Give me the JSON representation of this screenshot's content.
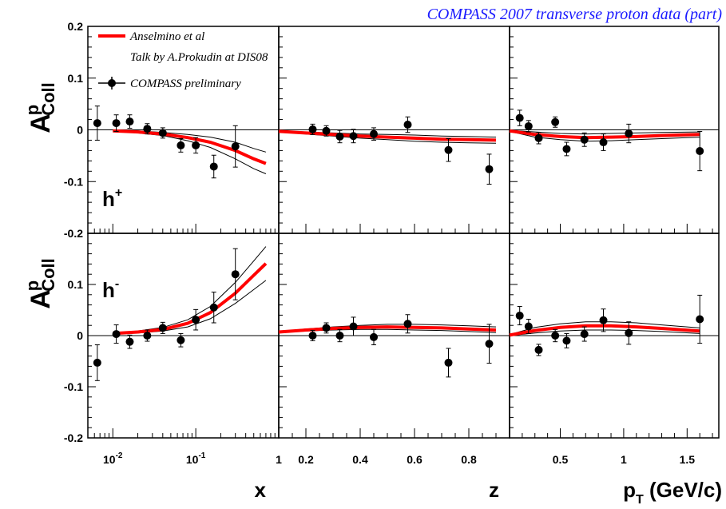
{
  "chart_data": {
    "type": "scatter",
    "title": "COMPASS 2007 transverse proton data  (part)",
    "ylabel": "A",
    "ylabel_sup": "p",
    "ylabel_sub": "Coll",
    "ylim": [
      -0.2,
      0.2
    ],
    "ytick_labels": [
      "0.2",
      "0.1",
      "0",
      "-0.1",
      "-0.2"
    ],
    "yticks": [
      0.2,
      0.1,
      0,
      -0.1,
      -0.2
    ],
    "legend": {
      "placement": "top-left",
      "curve": "Anselmino et al",
      "curve_note": "Talk by A.Prokudin at DIS08",
      "points": "COMPASS preliminary"
    },
    "colors": {
      "curve": "#ff0000",
      "points": "#000000",
      "band": "#000000",
      "title": "#1a1aff"
    },
    "rows": [
      {
        "label": "h",
        "sup": "+"
      },
      {
        "label": "h",
        "sup": "-"
      }
    ],
    "columns": [
      {
        "xlabel": "x",
        "scale": "log",
        "xlim": [
          0.005,
          1.0
        ],
        "xtick_labels": [
          {
            "value": 0.01,
            "base": "10",
            "exp": "-2"
          },
          {
            "value": 0.1,
            "base": "10",
            "exp": "-1"
          },
          {
            "value": 1,
            "base": "1",
            "exp": ""
          }
        ],
        "panels": [
          {
            "points": [
              {
                "x": 0.0065,
                "y": 0.013,
                "err": 0.033
              },
              {
                "x": 0.011,
                "y": 0.013,
                "err": 0.016
              },
              {
                "x": 0.016,
                "y": 0.016,
                "err": 0.013
              },
              {
                "x": 0.026,
                "y": 0.002,
                "err": 0.01
              },
              {
                "x": 0.04,
                "y": -0.006,
                "err": 0.01
              },
              {
                "x": 0.066,
                "y": -0.03,
                "err": 0.013
              },
              {
                "x": 0.1,
                "y": -0.03,
                "err": 0.015
              },
              {
                "x": 0.165,
                "y": -0.071,
                "err": 0.022
              },
              {
                "x": 0.3,
                "y": -0.032,
                "err": 0.04
              }
            ],
            "curve": [
              {
                "x": 0.01,
                "y": -0.002,
                "lo": -0.003,
                "hi": -0.001
              },
              {
                "x": 0.02,
                "y": -0.004,
                "lo": -0.006,
                "hi": -0.002
              },
              {
                "x": 0.04,
                "y": -0.008,
                "lo": -0.011,
                "hi": -0.005
              },
              {
                "x": 0.08,
                "y": -0.015,
                "lo": -0.021,
                "hi": -0.009
              },
              {
                "x": 0.15,
                "y": -0.024,
                "lo": -0.034,
                "hi": -0.014
              },
              {
                "x": 0.3,
                "y": -0.04,
                "lo": -0.056,
                "hi": -0.024
              },
              {
                "x": 0.5,
                "y": -0.056,
                "lo": -0.075,
                "hi": -0.036
              },
              {
                "x": 0.7,
                "y": -0.065,
                "lo": -0.085,
                "hi": -0.043
              }
            ]
          },
          {
            "points": [
              {
                "x": 0.0065,
                "y": -0.053,
                "err": 0.035
              },
              {
                "x": 0.011,
                "y": 0.003,
                "err": 0.018
              },
              {
                "x": 0.016,
                "y": -0.012,
                "err": 0.013
              },
              {
                "x": 0.026,
                "y": 0.0,
                "err": 0.011
              },
              {
                "x": 0.04,
                "y": 0.015,
                "err": 0.011
              },
              {
                "x": 0.066,
                "y": -0.009,
                "err": 0.013
              },
              {
                "x": 0.1,
                "y": 0.031,
                "err": 0.02
              },
              {
                "x": 0.165,
                "y": 0.055,
                "err": 0.03
              },
              {
                "x": 0.3,
                "y": 0.12,
                "err": 0.05
              }
            ],
            "curve": [
              {
                "x": 0.01,
                "y": 0.004,
                "lo": 0.003,
                "hi": 0.005
              },
              {
                "x": 0.02,
                "y": 0.007,
                "lo": 0.005,
                "hi": 0.009
              },
              {
                "x": 0.04,
                "y": 0.012,
                "lo": 0.009,
                "hi": 0.016
              },
              {
                "x": 0.08,
                "y": 0.024,
                "lo": 0.017,
                "hi": 0.031
              },
              {
                "x": 0.15,
                "y": 0.045,
                "lo": 0.033,
                "hi": 0.057
              },
              {
                "x": 0.3,
                "y": 0.083,
                "lo": 0.063,
                "hi": 0.104
              },
              {
                "x": 0.5,
                "y": 0.118,
                "lo": 0.09,
                "hi": 0.146
              },
              {
                "x": 0.7,
                "y": 0.141,
                "lo": 0.108,
                "hi": 0.174
              }
            ]
          }
        ]
      },
      {
        "xlabel": "z",
        "scale": "linear",
        "xlim": [
          0.1,
          0.95
        ],
        "xtick_labels": [
          {
            "value": 0.2,
            "base": "0.2",
            "exp": ""
          },
          {
            "value": 0.4,
            "base": "0.4",
            "exp": ""
          },
          {
            "value": 0.6,
            "base": "0.6",
            "exp": ""
          },
          {
            "value": 0.8,
            "base": "0.8",
            "exp": ""
          }
        ],
        "panels": [
          {
            "points": [
              {
                "x": 0.225,
                "y": 0.001,
                "err": 0.01
              },
              {
                "x": 0.275,
                "y": -0.002,
                "err": 0.01
              },
              {
                "x": 0.325,
                "y": -0.013,
                "err": 0.012
              },
              {
                "x": 0.375,
                "y": -0.012,
                "err": 0.013
              },
              {
                "x": 0.45,
                "y": -0.008,
                "err": 0.012
              },
              {
                "x": 0.575,
                "y": 0.01,
                "err": 0.015
              },
              {
                "x": 0.725,
                "y": -0.039,
                "err": 0.022
              },
              {
                "x": 0.875,
                "y": -0.076,
                "err": 0.029
              }
            ],
            "curve": [
              {
                "x": 0.1,
                "y": -0.003,
                "lo": -0.004,
                "hi": -0.002
              },
              {
                "x": 0.2,
                "y": -0.006,
                "lo": -0.008,
                "hi": -0.004
              },
              {
                "x": 0.3,
                "y": -0.009,
                "lo": -0.012,
                "hi": -0.006
              },
              {
                "x": 0.4,
                "y": -0.012,
                "lo": -0.016,
                "hi": -0.008
              },
              {
                "x": 0.5,
                "y": -0.014,
                "lo": -0.019,
                "hi": -0.009
              },
              {
                "x": 0.6,
                "y": -0.016,
                "lo": -0.022,
                "hi": -0.01
              },
              {
                "x": 0.7,
                "y": -0.018,
                "lo": -0.024,
                "hi": -0.012
              },
              {
                "x": 0.8,
                "y": -0.019,
                "lo": -0.025,
                "hi": -0.013
              },
              {
                "x": 0.9,
                "y": -0.02,
                "lo": -0.026,
                "hi": -0.014
              }
            ]
          },
          {
            "points": [
              {
                "x": 0.225,
                "y": 0.0,
                "err": 0.01
              },
              {
                "x": 0.275,
                "y": 0.015,
                "err": 0.01
              },
              {
                "x": 0.325,
                "y": 0.0,
                "err": 0.012
              },
              {
                "x": 0.375,
                "y": 0.018,
                "err": 0.018
              },
              {
                "x": 0.45,
                "y": -0.003,
                "err": 0.015
              },
              {
                "x": 0.575,
                "y": 0.023,
                "err": 0.018
              },
              {
                "x": 0.725,
                "y": -0.053,
                "err": 0.028
              },
              {
                "x": 0.875,
                "y": -0.016,
                "err": 0.038
              }
            ],
            "curve": [
              {
                "x": 0.1,
                "y": 0.007,
                "lo": 0.006,
                "hi": 0.008
              },
              {
                "x": 0.2,
                "y": 0.011,
                "lo": 0.009,
                "hi": 0.013
              },
              {
                "x": 0.3,
                "y": 0.014,
                "lo": 0.011,
                "hi": 0.017
              },
              {
                "x": 0.4,
                "y": 0.016,
                "lo": 0.012,
                "hi": 0.02
              },
              {
                "x": 0.5,
                "y": 0.017,
                "lo": 0.012,
                "hi": 0.022
              },
              {
                "x": 0.6,
                "y": 0.016,
                "lo": 0.011,
                "hi": 0.022
              },
              {
                "x": 0.7,
                "y": 0.015,
                "lo": 0.01,
                "hi": 0.021
              },
              {
                "x": 0.8,
                "y": 0.013,
                "lo": 0.008,
                "hi": 0.019
              },
              {
                "x": 0.9,
                "y": 0.011,
                "lo": 0.006,
                "hi": 0.017
              }
            ]
          }
        ]
      },
      {
        "xlabel": "p",
        "xlabel_sub": "T",
        "xlabel_unit": " (GeV/c)",
        "scale": "linear",
        "xlim": [
          0.1,
          1.75
        ],
        "xtick_labels": [
          {
            "value": 0.5,
            "base": "0.5",
            "exp": ""
          },
          {
            "value": 1.0,
            "base": "1",
            "exp": ""
          },
          {
            "value": 1.5,
            "base": "1.5",
            "exp": ""
          }
        ],
        "panels": [
          {
            "points": [
              {
                "x": 0.18,
                "y": 0.023,
                "err": 0.015
              },
              {
                "x": 0.25,
                "y": 0.007,
                "err": 0.011
              },
              {
                "x": 0.33,
                "y": -0.016,
                "err": 0.011
              },
              {
                "x": 0.46,
                "y": 0.015,
                "err": 0.01
              },
              {
                "x": 0.55,
                "y": -0.037,
                "err": 0.013
              },
              {
                "x": 0.69,
                "y": -0.019,
                "err": 0.013
              },
              {
                "x": 0.84,
                "y": -0.024,
                "err": 0.016
              },
              {
                "x": 1.04,
                "y": -0.007,
                "err": 0.018
              },
              {
                "x": 1.6,
                "y": -0.041,
                "err": 0.038
              }
            ],
            "curve": [
              {
                "x": 0.1,
                "y": -0.002,
                "lo": -0.003,
                "hi": -0.001
              },
              {
                "x": 0.3,
                "y": -0.009,
                "lo": -0.014,
                "hi": -0.004
              },
              {
                "x": 0.5,
                "y": -0.013,
                "lo": -0.019,
                "hi": -0.007
              },
              {
                "x": 0.7,
                "y": -0.015,
                "lo": -0.022,
                "hi": -0.008
              },
              {
                "x": 0.9,
                "y": -0.014,
                "lo": -0.021,
                "hi": -0.007
              },
              {
                "x": 1.1,
                "y": -0.013,
                "lo": -0.019,
                "hi": -0.006
              },
              {
                "x": 1.3,
                "y": -0.011,
                "lo": -0.017,
                "hi": -0.005
              },
              {
                "x": 1.6,
                "y": -0.009,
                "lo": -0.014,
                "hi": -0.004
              }
            ]
          },
          {
            "points": [
              {
                "x": 0.18,
                "y": 0.039,
                "err": 0.018
              },
              {
                "x": 0.25,
                "y": 0.018,
                "err": 0.014
              },
              {
                "x": 0.33,
                "y": -0.028,
                "err": 0.011
              },
              {
                "x": 0.46,
                "y": 0.0,
                "err": 0.012
              },
              {
                "x": 0.55,
                "y": -0.01,
                "err": 0.014
              },
              {
                "x": 0.69,
                "y": 0.003,
                "err": 0.014
              },
              {
                "x": 0.84,
                "y": 0.03,
                "err": 0.022
              },
              {
                "x": 1.04,
                "y": 0.005,
                "err": 0.022
              },
              {
                "x": 1.6,
                "y": 0.032,
                "err": 0.047
              }
            ],
            "curve": [
              {
                "x": 0.1,
                "y": 0.001,
                "lo": 0.0,
                "hi": 0.002
              },
              {
                "x": 0.3,
                "y": 0.01,
                "lo": 0.005,
                "hi": 0.016
              },
              {
                "x": 0.5,
                "y": 0.016,
                "lo": 0.009,
                "hi": 0.023
              },
              {
                "x": 0.7,
                "y": 0.019,
                "lo": 0.011,
                "hi": 0.027
              },
              {
                "x": 0.9,
                "y": 0.019,
                "lo": 0.011,
                "hi": 0.027
              },
              {
                "x": 1.1,
                "y": 0.017,
                "lo": 0.01,
                "hi": 0.025
              },
              {
                "x": 1.3,
                "y": 0.014,
                "lo": 0.008,
                "hi": 0.021
              },
              {
                "x": 1.6,
                "y": 0.009,
                "lo": 0.004,
                "hi": 0.015
              }
            ]
          }
        ]
      }
    ]
  }
}
